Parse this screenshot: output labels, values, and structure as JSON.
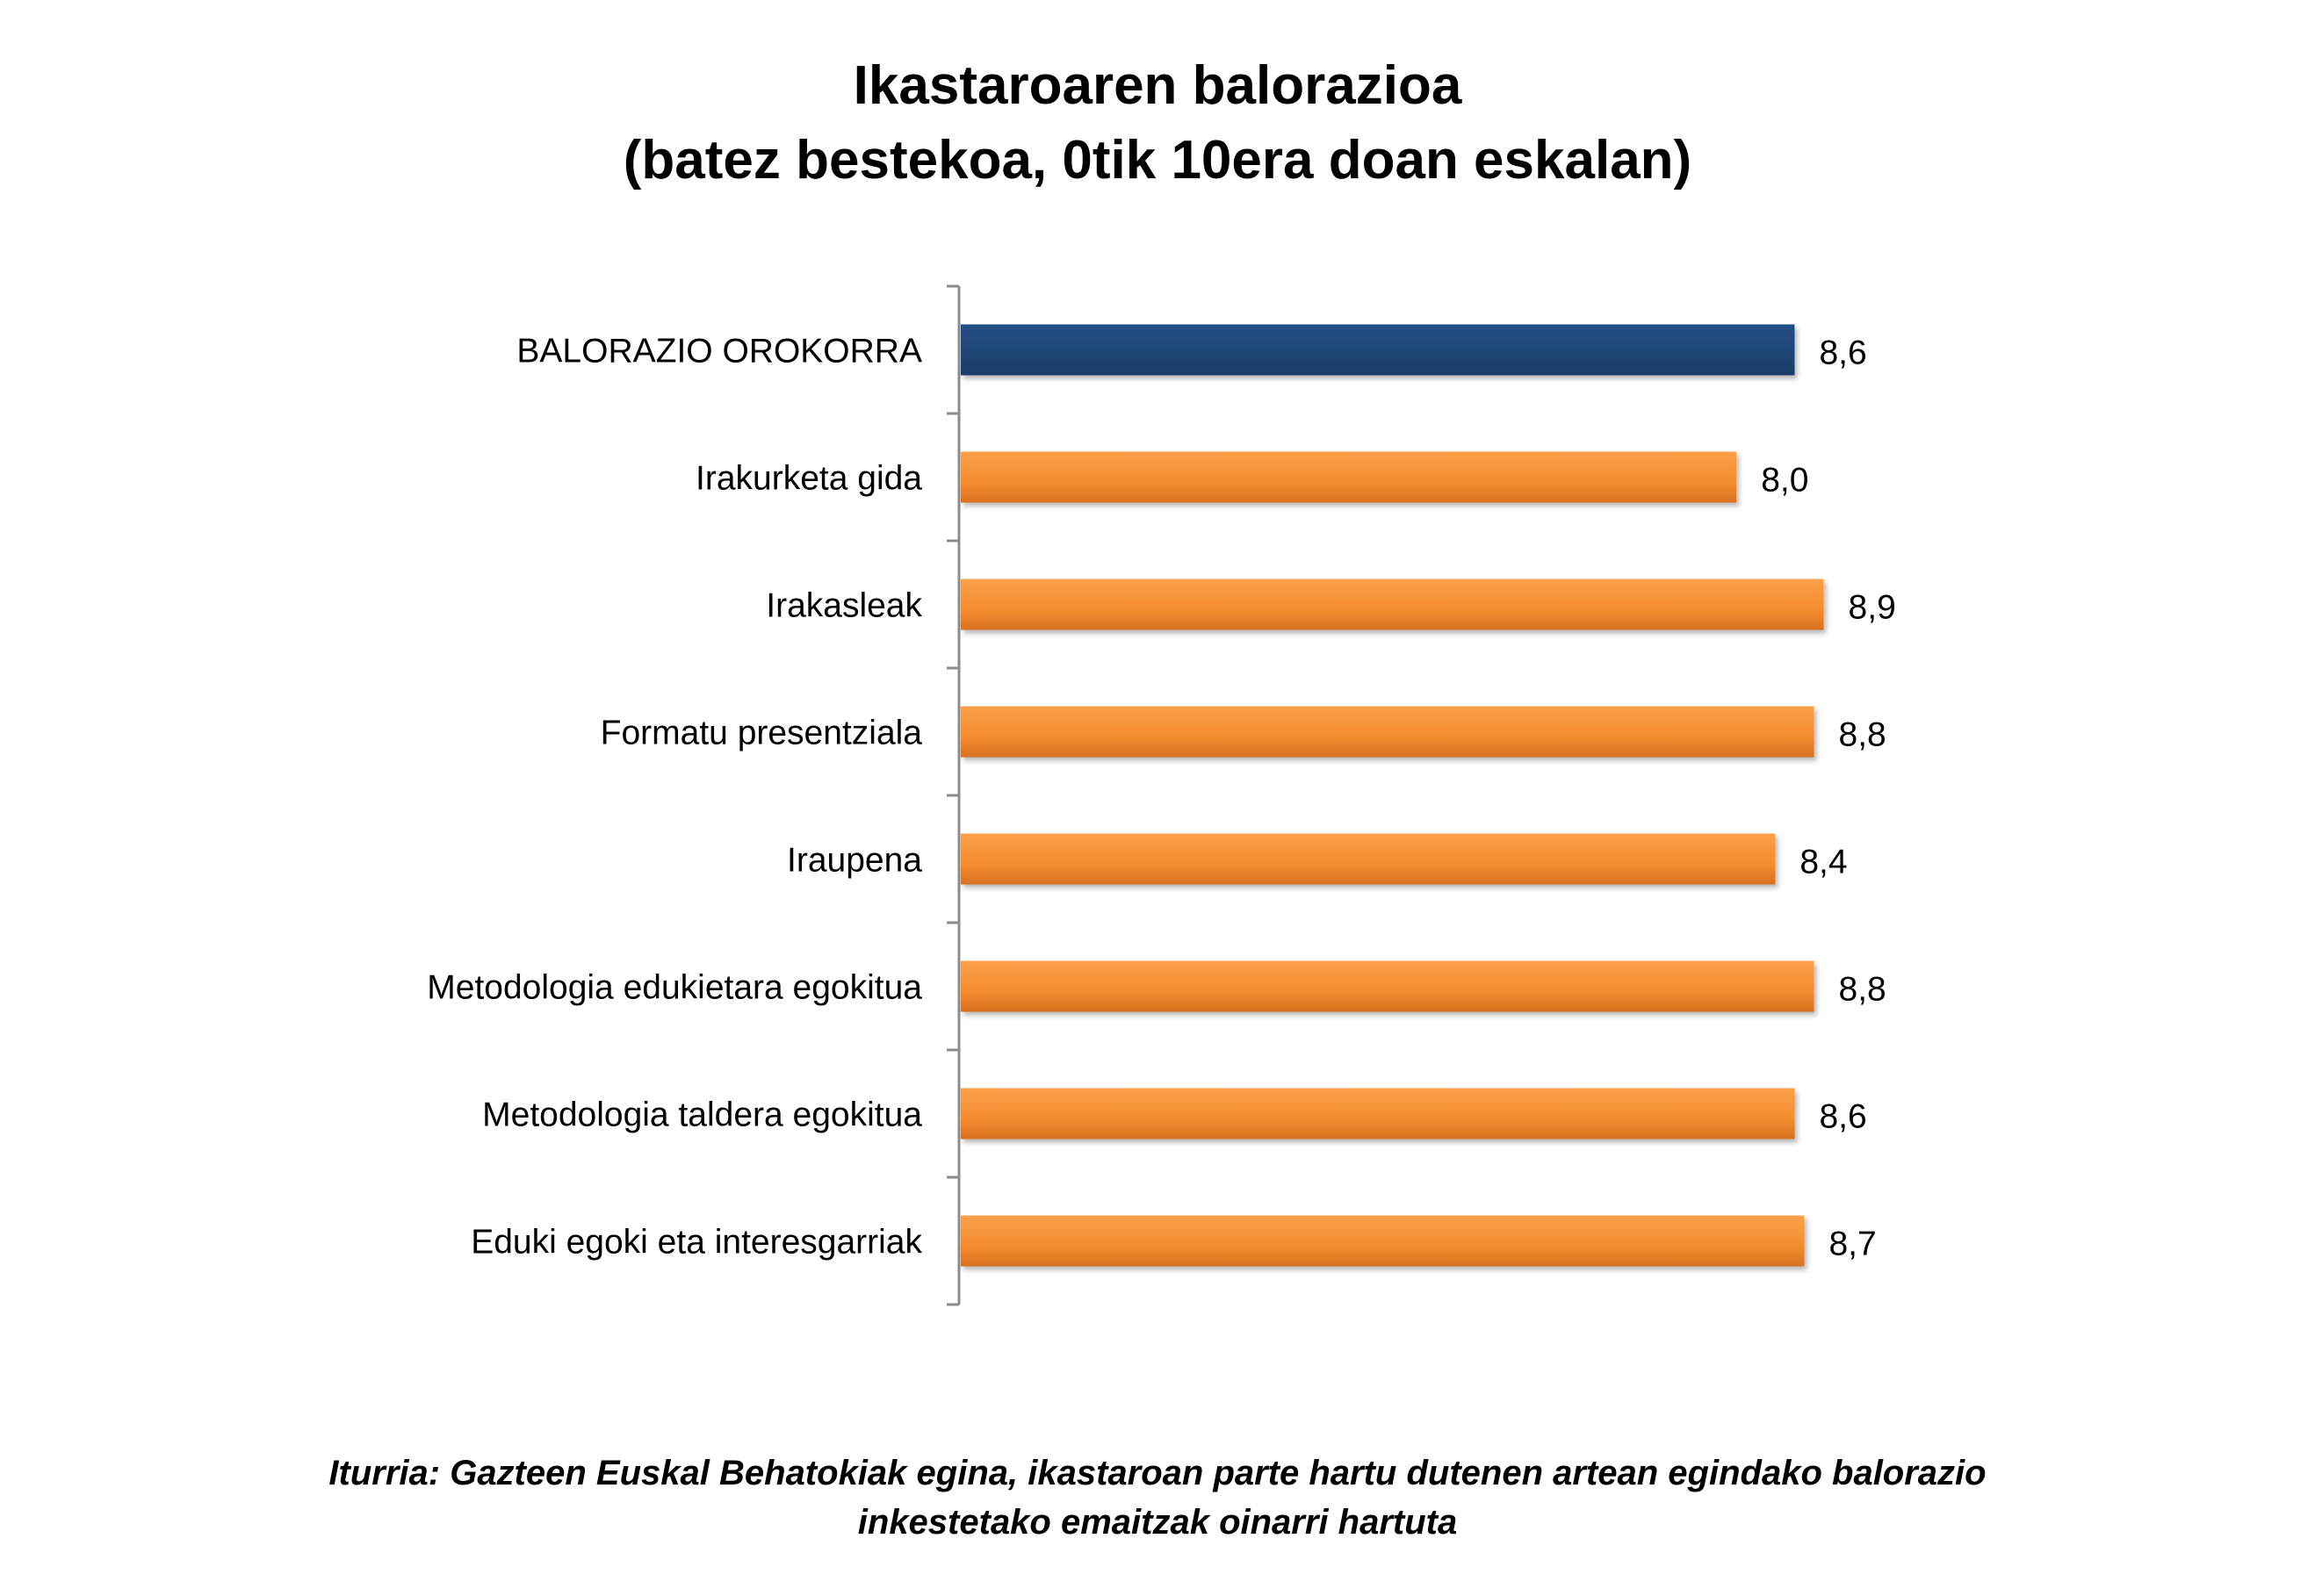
{
  "chart_data": {
    "type": "bar",
    "orientation": "horizontal",
    "title": "Ikastaroaren balorazioa",
    "subtitle": "(batez bestekoa, 0tik 10era doan eskalan)",
    "categories": [
      "BALORAZIO OROKORRA",
      "Irakurketa gida",
      "Irakasleak",
      "Formatu presentziala",
      "Iraupena",
      "Metodologia edukietara egokitua",
      "Metodologia taldera egokitua",
      "Eduki egoki eta interesgarriak"
    ],
    "values": [
      8.6,
      8.0,
      8.9,
      8.8,
      8.4,
      8.8,
      8.6,
      8.7
    ],
    "value_labels": [
      "8,6",
      "8,0",
      "8,9",
      "8,8",
      "8,4",
      "8,8",
      "8,6",
      "8,7"
    ],
    "xlim": [
      0,
      10
    ],
    "xlabel": "",
    "ylabel": "",
    "grid": false,
    "legend": "none",
    "colors": {
      "highlight": "#1f497d",
      "highlight_dark": "#1a3d68",
      "bar": "#f79433",
      "bar_dark": "#d8711f",
      "axis": "#8c8c8c"
    },
    "highlight_index": 0
  },
  "source": {
    "line1": "Iturria: Gazteen Euskal Behatokiak egina, ikastaroan parte hartu dutenen artean egindako balorazio",
    "line2": "inkestetako emaitzak oinarri hartuta"
  }
}
